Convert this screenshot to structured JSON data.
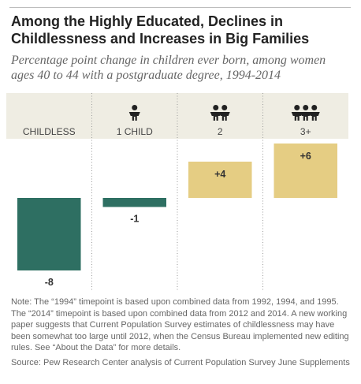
{
  "title": "Among the Highly Educated, Declines in Childlessness and Increases in Big Families",
  "subtitle": "Percentage point change in children ever born, among women ages 40 to 44 with a postgraduate degree, 1994-2014",
  "colors": {
    "negative": "#2e6f62",
    "positive": "#e5cd83",
    "header_band": "#efede3",
    "icon": "#222222",
    "label": "#444444",
    "value": "#333333"
  },
  "chart_data": {
    "type": "bar",
    "categories": [
      "CHILDLESS",
      "1 CHILD",
      "2",
      "3+"
    ],
    "category_icons": [
      "",
      "child-icon",
      "child-icon-x2",
      "child-icon-x3"
    ],
    "values": [
      -8,
      -1,
      4,
      6
    ],
    "value_labels": [
      "-8",
      "-1",
      "+4",
      "+6"
    ],
    "ylim": [
      -8.5,
      6.2
    ],
    "grid": false,
    "separators": "dotted"
  },
  "notes": {
    "note": "Note: The “1994” timepoint is based upon combined data from 1992, 1994, and 1995.  The “2014” timepoint is based upon combined data from 2012 and 2014. A new working paper suggests that Current Population Survey estimates of childlessness may have been somewhat too large until 2012, when the Census Bureau implemented new editing rules. See “About the Data” for more details.",
    "source": "Source: Pew Research Center analysis of Current Population Survey June Supplements"
  }
}
